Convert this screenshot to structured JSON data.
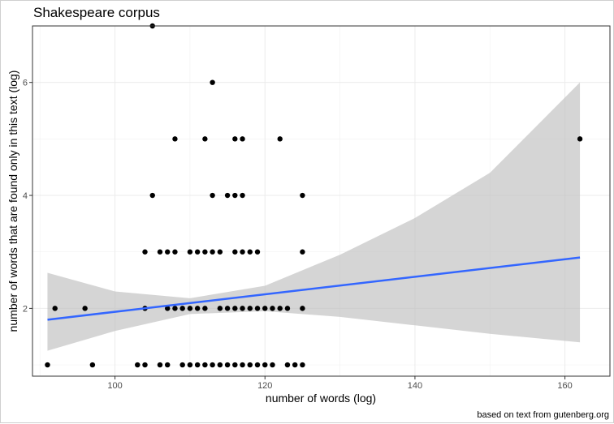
{
  "chart_data": {
    "type": "scatter",
    "title": "Shakespeare corpus",
    "xlabel": "number of words (log)",
    "ylabel": "number of words that are found only in this text (log)",
    "caption": "based on text from gutenberg.org",
    "x_ticks": [
      "100",
      "120",
      "140",
      "160"
    ],
    "y_ticks": [
      "2",
      "4",
      "6"
    ],
    "xlim": [
      89,
      166
    ],
    "ylim": [
      0.8,
      7.0
    ],
    "theme": "bw",
    "grid": true,
    "point_color": "#000000",
    "fit_line": {
      "color": "#3366FF",
      "method": "linear",
      "x": [
        91,
        162
      ],
      "y": [
        1.8,
        2.9
      ]
    },
    "confidence_band": {
      "color": "#BEBEBE",
      "x": [
        91,
        100,
        110,
        120,
        130,
        140,
        150,
        162
      ],
      "lower": [
        1.25,
        1.6,
        1.9,
        1.95,
        1.85,
        1.7,
        1.55,
        1.4
      ],
      "upper": [
        2.63,
        2.3,
        2.18,
        2.4,
        2.95,
        3.6,
        4.4,
        6.0
      ]
    },
    "series": [
      {
        "points": [
          [
            91,
            1
          ],
          [
            92,
            2
          ],
          [
            96,
            2
          ],
          [
            97,
            1
          ],
          [
            103,
            1
          ],
          [
            104,
            1
          ],
          [
            104,
            2
          ],
          [
            104,
            3
          ],
          [
            105,
            7
          ],
          [
            105,
            4
          ],
          [
            106,
            1
          ],
          [
            106,
            3
          ],
          [
            107,
            1
          ],
          [
            107,
            2
          ],
          [
            107,
            3
          ],
          [
            108,
            2
          ],
          [
            108,
            3
          ],
          [
            108,
            5
          ],
          [
            109,
            1
          ],
          [
            109,
            2
          ],
          [
            110,
            1
          ],
          [
            110,
            2
          ],
          [
            110,
            3
          ],
          [
            111,
            1
          ],
          [
            111,
            2
          ],
          [
            111,
            3
          ],
          [
            112,
            1
          ],
          [
            112,
            2
          ],
          [
            112,
            3
          ],
          [
            112,
            5
          ],
          [
            113,
            1
          ],
          [
            113,
            3
          ],
          [
            113,
            4
          ],
          [
            113,
            6
          ],
          [
            114,
            1
          ],
          [
            114,
            2
          ],
          [
            114,
            3
          ],
          [
            115,
            1
          ],
          [
            115,
            2
          ],
          [
            115,
            4
          ],
          [
            116,
            1
          ],
          [
            116,
            2
          ],
          [
            116,
            3
          ],
          [
            116,
            4
          ],
          [
            116,
            5
          ],
          [
            117,
            1
          ],
          [
            117,
            2
          ],
          [
            117,
            3
          ],
          [
            117,
            4
          ],
          [
            117,
            5
          ],
          [
            118,
            1
          ],
          [
            118,
            2
          ],
          [
            118,
            3
          ],
          [
            119,
            1
          ],
          [
            119,
            2
          ],
          [
            119,
            3
          ],
          [
            120,
            1
          ],
          [
            120,
            2
          ],
          [
            121,
            1
          ],
          [
            121,
            2
          ],
          [
            122,
            2
          ],
          [
            122,
            5
          ],
          [
            123,
            1
          ],
          [
            123,
            2
          ],
          [
            124,
            1
          ],
          [
            125,
            1
          ],
          [
            125,
            2
          ],
          [
            125,
            3
          ],
          [
            125,
            4
          ],
          [
            162,
            5
          ]
        ]
      }
    ]
  }
}
